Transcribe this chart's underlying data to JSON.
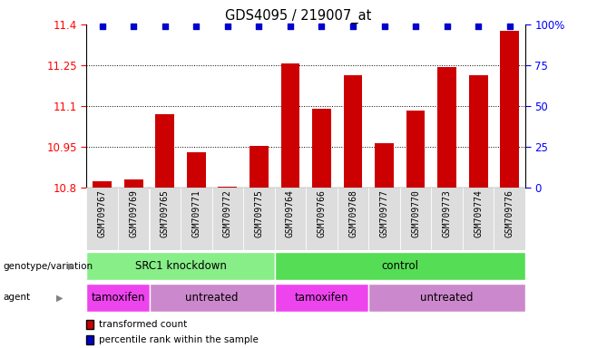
{
  "title": "GDS4095 / 219007_at",
  "samples": [
    "GSM709767",
    "GSM709769",
    "GSM709765",
    "GSM709771",
    "GSM709772",
    "GSM709775",
    "GSM709764",
    "GSM709766",
    "GSM709768",
    "GSM709777",
    "GSM709770",
    "GSM709773",
    "GSM709774",
    "GSM709776"
  ],
  "bar_values": [
    10.825,
    10.83,
    11.07,
    10.93,
    10.805,
    10.955,
    11.255,
    11.09,
    11.215,
    10.965,
    11.085,
    11.245,
    11.215,
    11.375
  ],
  "percentile_values": [
    99,
    99,
    99,
    99,
    99,
    99,
    99,
    99,
    99,
    99,
    99,
    99,
    99,
    99
  ],
  "bar_color": "#cc0000",
  "percentile_color": "#0000cc",
  "ymin": 10.8,
  "ymax": 11.4,
  "yticks": [
    10.8,
    10.95,
    11.1,
    11.25,
    11.4
  ],
  "right_yticks": [
    0,
    25,
    50,
    75,
    100
  ],
  "right_yticklabels": [
    "0",
    "25",
    "50",
    "75",
    "100%"
  ],
  "genotype_groups": [
    {
      "label": "SRC1 knockdown",
      "start": 0,
      "end": 6,
      "color": "#88ee88"
    },
    {
      "label": "control",
      "start": 6,
      "end": 14,
      "color": "#55dd55"
    }
  ],
  "agent_groups": [
    {
      "label": "tamoxifen",
      "start": 0,
      "end": 2,
      "color": "#ee44ee"
    },
    {
      "label": "untreated",
      "start": 2,
      "end": 6,
      "color": "#cc88cc"
    },
    {
      "label": "tamoxifen",
      "start": 6,
      "end": 9,
      "color": "#ee44ee"
    },
    {
      "label": "untreated",
      "start": 9,
      "end": 14,
      "color": "#cc88cc"
    }
  ],
  "legend_items": [
    {
      "label": "transformed count",
      "color": "#cc0000"
    },
    {
      "label": "percentile rank within the sample",
      "color": "#0000cc"
    }
  ],
  "genotype_label": "genotype/variation",
  "agent_label": "agent",
  "xtick_bg": "#dddddd"
}
